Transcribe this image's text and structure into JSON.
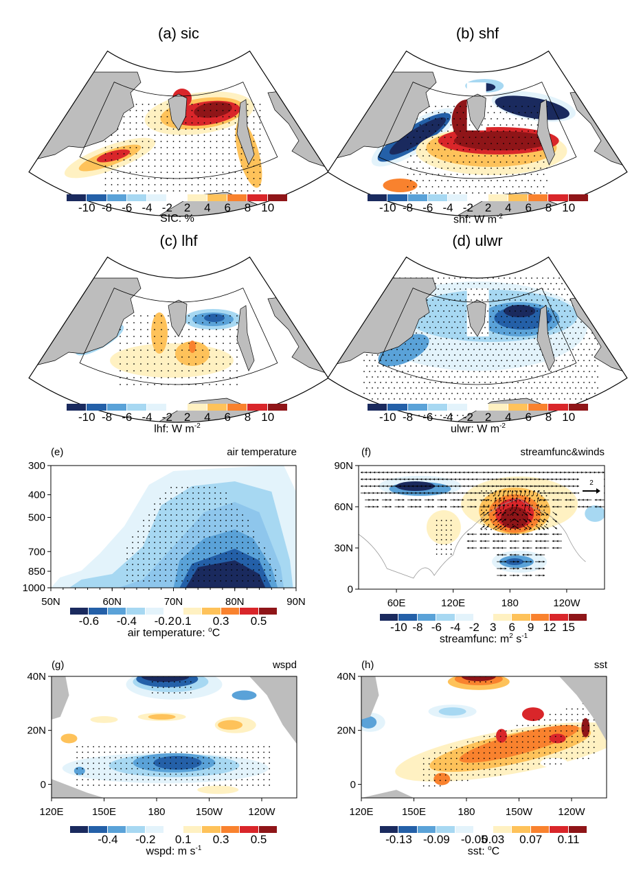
{
  "figure": {
    "palette": [
      "#1a2a5e",
      "#2460a8",
      "#5aa2d8",
      "#a7d8f2",
      "#e3f3fb",
      "#ffffff",
      "#fff1c2",
      "#fec25a",
      "#f9822e",
      "#d9262a",
      "#8f1518"
    ]
  },
  "chart_data": [
    {
      "id": "a",
      "type": "heatmap",
      "title": "(a) sic",
      "projection": "polar-sector",
      "colorbar": {
        "ticks": [
          "-10",
          "-8",
          "-6",
          "-4",
          "-2",
          "2",
          "4",
          "6",
          "8",
          "10"
        ],
        "label": "SIC: %"
      },
      "features": [
        "positive anomaly band along ice edge (Greenland Sea to Barents/Kara)",
        "strongest values 8-10 east of Svalbard",
        "stippling over significant regions",
        "box outlining Barents-Kara region"
      ]
    },
    {
      "id": "b",
      "type": "heatmap",
      "title": "(b) shf",
      "projection": "polar-sector",
      "colorbar": {
        "ticks": [
          "-10",
          "-8",
          "-6",
          "-4",
          "-2",
          "2",
          "4",
          "6",
          "8",
          "10"
        ],
        "label": "shf: W m",
        "label_sup": "-2"
      },
      "features": [
        "negative (<-10) band in Greenland Sea and north Barents",
        "positive (>10) band south of Svalbard"
      ]
    },
    {
      "id": "c",
      "type": "heatmap",
      "title": "(c) lhf",
      "projection": "polar-sector",
      "colorbar": {
        "ticks": [
          "-10",
          "-8",
          "-6",
          "-4",
          "-2",
          "2",
          "4",
          "6",
          "8",
          "10"
        ],
        "label": "lhf: W m",
        "label_sup": "-2"
      },
      "features": [
        "weak negative patches -4 to -8",
        "weak positive patches 2 to 6"
      ]
    },
    {
      "id": "d",
      "type": "heatmap",
      "title": "(d) ulwr",
      "projection": "polar-sector",
      "colorbar": {
        "ticks": [
          "-10",
          "-8",
          "-6",
          "-4",
          "-2",
          "2",
          "4",
          "6",
          "8",
          "10"
        ],
        "label": "ulwr: W m",
        "label_sup": "-2"
      },
      "features": [
        "broad negative anomaly, minimum near -10 east of Svalbard",
        "stippling over most of domain"
      ]
    },
    {
      "id": "e",
      "type": "heatmap",
      "subtitle_left": "(e)",
      "subtitle_right": "air temperature",
      "xlabel": "",
      "ylabel": "",
      "x_ticks": [
        "50N",
        "60N",
        "70N",
        "80N",
        "90N"
      ],
      "y_ticks": [
        "300",
        "400",
        "500",
        "700",
        "850",
        "1000"
      ],
      "xlim": [
        50,
        90
      ],
      "ylim": [
        1000,
        300
      ],
      "colorbar": {
        "ticks": [
          "-0.6",
          "-0.4",
          "-0.2",
          "0.1",
          "0.3",
          "0.5"
        ],
        "label": "air temperature: ",
        "label_sup": "o",
        "label_tail": "C"
      },
      "features": [
        "cold anomaly centered at 80N near surface (< -0.6)",
        "cooling extends up to ~350 hPa",
        "stippling 62N-88N"
      ]
    },
    {
      "id": "f",
      "type": "heatmap",
      "subtitle_left": "(f)",
      "subtitle_right": "streamfunc&winds",
      "x_ticks": [
        "60E",
        "120E",
        "180",
        "120W"
      ],
      "y_ticks": [
        "0",
        "30N",
        "60N",
        "90N"
      ],
      "reference_vector": "2",
      "colorbar": {
        "ticks": [
          "-10",
          "-8",
          "-6",
          "-4",
          "-2",
          "3",
          "6",
          "9",
          "12",
          "15"
        ],
        "label": "streamfunc: m",
        "label_sup": "2",
        "label_mid": " s",
        "label_sup2": "-1"
      },
      "features": [
        "positive center ~15 near 180 / 55N",
        "negative center near 80E / 75N",
        "negative center near 180 / 20N",
        "wind vectors overlay"
      ]
    },
    {
      "id": "g",
      "type": "heatmap",
      "subtitle_left": "(g)",
      "subtitle_right": "wspd",
      "x_ticks": [
        "120E",
        "150E",
        "180",
        "150W",
        "120W"
      ],
      "y_ticks": [
        "0",
        "20N",
        "40N"
      ],
      "colorbar": {
        "ticks": [
          "-0.4",
          "-0.2",
          "0.1",
          "0.3",
          "0.5"
        ],
        "label": "wspd: m s",
        "label_sup": "-1"
      },
      "features": [
        "negative band 0-15N with minimum near 165W",
        "negative near 175W/38N",
        "positive patches near 25N"
      ]
    },
    {
      "id": "h",
      "type": "heatmap",
      "subtitle_left": "(h)",
      "subtitle_right": "sst",
      "x_ticks": [
        "120E",
        "150E",
        "180",
        "150W",
        "120W"
      ],
      "y_ticks": [
        "0",
        "20N",
        "40N"
      ],
      "colorbar": {
        "ticks": [
          "-0.13",
          "-0.09",
          "-0.05",
          "0.03",
          "0.07",
          "0.11"
        ],
        "label": "sst: ",
        "label_sup": "o",
        "label_tail": "C"
      },
      "features": [
        "warm band from 160E/0 to 120W/20N",
        "strong warm near 170W/40N",
        "cool west Pacific near 125E/22N"
      ]
    }
  ]
}
